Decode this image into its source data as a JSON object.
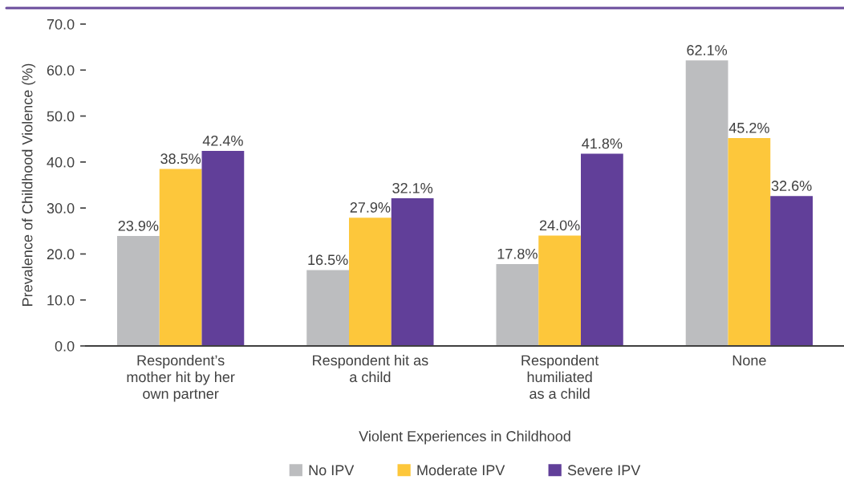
{
  "chart_data": {
    "type": "bar",
    "categories": [
      "Respondent’s\nmother hit by her\nown partner",
      "Respondent hit as\na child",
      "Respondent\nhumiliated\nas a child",
      "None"
    ],
    "series": [
      {
        "name": "No IPV",
        "color": "#bcbdbf",
        "values": [
          23.9,
          16.5,
          17.8,
          62.1
        ],
        "value_labels": [
          "23.9%",
          "16.5%",
          "17.8%",
          "62.1%"
        ]
      },
      {
        "name": "Moderate IPV",
        "color": "#fdc73b",
        "values": [
          38.5,
          27.9,
          24.0,
          45.2
        ],
        "value_labels": [
          "38.5%",
          "27.9%",
          "24.0%",
          "45.2%"
        ]
      },
      {
        "name": "Severe IPV",
        "color": "#613f99",
        "values": [
          42.4,
          32.1,
          41.8,
          32.6
        ],
        "value_labels": [
          "42.4%",
          "32.1%",
          "41.8%",
          "32.6%"
        ]
      }
    ],
    "xlabel": "Violent Experiences in Childhood",
    "ylabel": "Prevalence of Childhood Violence (%)",
    "ylim": [
      0,
      70
    ],
    "yticks": [
      {
        "value": 0,
        "label": "0.0"
      },
      {
        "value": 10,
        "label": "10.0"
      },
      {
        "value": 20,
        "label": "20.0"
      },
      {
        "value": 30,
        "label": "30.0"
      },
      {
        "value": 40,
        "label": "40.0"
      },
      {
        "value": 50,
        "label": "50.0"
      },
      {
        "value": 60,
        "label": "60.0"
      },
      {
        "value": 70,
        "label": "70.0"
      }
    ],
    "grid": false,
    "legend": "bottom"
  }
}
